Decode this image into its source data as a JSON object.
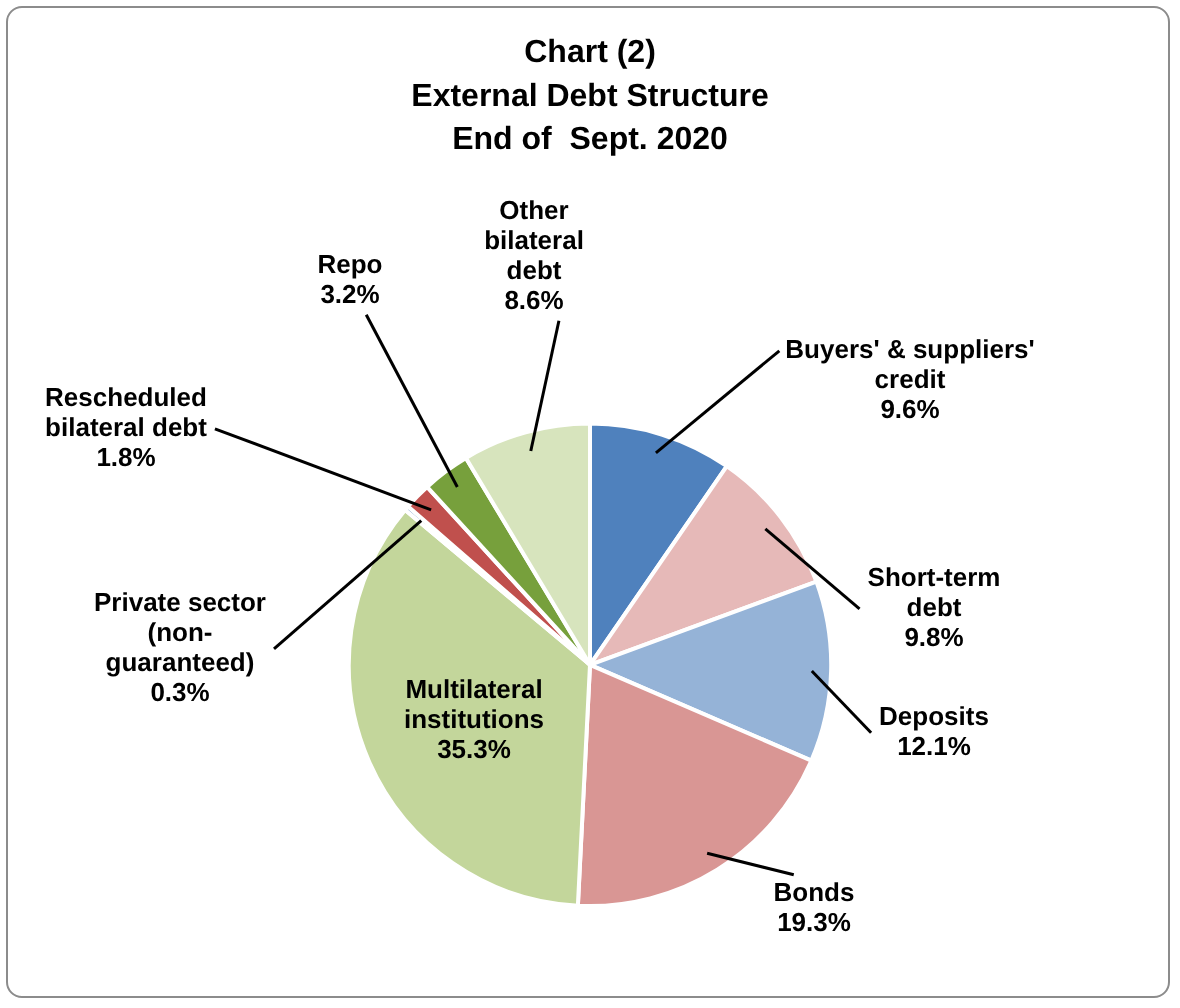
{
  "chart_data": {
    "type": "pie",
    "title": "Chart (2)\nExternal Debt Structure\nEnd of  Sept. 2020",
    "categories": [
      "Buyers' & suppliers' credit",
      "Short-term debt",
      "Deposits",
      "Bonds",
      "Multilateral institutions",
      "Private sector (non-guaranteed)",
      "Rescheduled bilateral debt",
      "Repo",
      "Other bilateral debt"
    ],
    "values": [
      9.6,
      9.8,
      12.1,
      19.3,
      35.3,
      0.3,
      1.8,
      3.2,
      8.6
    ],
    "value_labels": [
      "9.6%",
      "9.8%",
      "12.1%",
      "19.3%",
      "35.3%",
      "0.3%",
      "1.8%",
      "3.2%",
      "8.6%"
    ],
    "colors": [
      "#4f81bd",
      "#e6b9b8",
      "#95b3d7",
      "#d99694",
      "#c3d69b",
      "#4f81bd",
      "#c0504d",
      "#77a03c",
      "#d7e4bd"
    ],
    "legend": false
  }
}
